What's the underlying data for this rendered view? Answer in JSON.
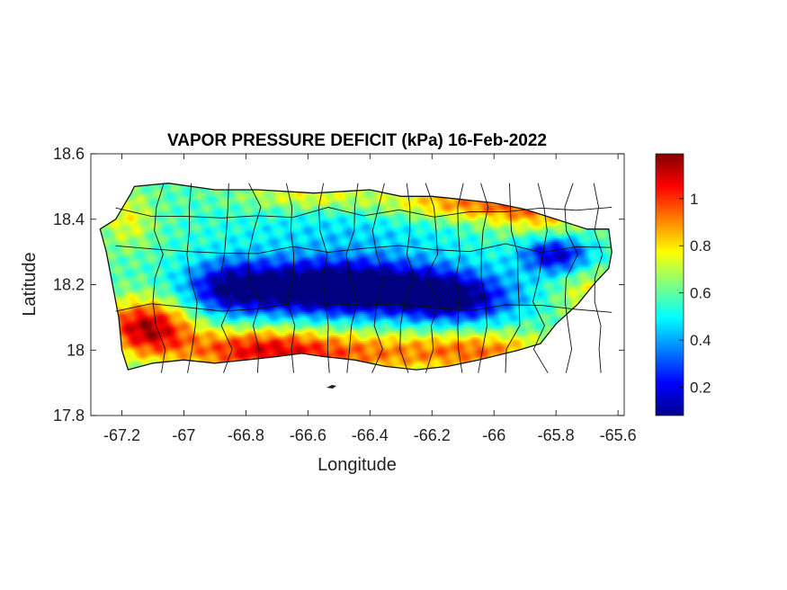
{
  "figure": {
    "title": "VAPOR PRESSURE DEFICIT (kPa) 16-Feb-2022",
    "xlabel": "Longitude",
    "ylabel": "Latitude"
  },
  "map": {
    "region": "Puerto Rico",
    "variable": "vapor pressure deficit",
    "units": "kPa",
    "date": "16-Feb-2022",
    "xlim": [
      -67.3,
      -65.58
    ],
    "ylim": [
      17.8,
      18.6
    ],
    "x_ticks": [
      "-67.2",
      "-67",
      "-66.8",
      "-66.6",
      "-66.4",
      "-66.2",
      "-66",
      "-65.8",
      "-65.6"
    ],
    "x_tick_values": [
      -67.2,
      -67.0,
      -66.8,
      -66.6,
      -66.4,
      -66.2,
      -66.0,
      -65.8,
      -65.6
    ],
    "y_ticks": [
      "17.8",
      "18",
      "18.2",
      "18.4",
      "18.6"
    ],
    "y_tick_values": [
      17.8,
      18.0,
      18.2,
      18.4,
      18.6
    ],
    "colormap": "jet",
    "colorbar": {
      "range": [
        0.08,
        1.19
      ],
      "ticks": [
        "0.2",
        "0.4",
        "0.6",
        "0.8",
        "1"
      ],
      "tick_values": [
        0.2,
        0.4,
        0.6,
        0.8,
        1.0
      ]
    },
    "coast": [
      [
        -67.27,
        18.37
      ],
      [
        -67.22,
        18.4
      ],
      [
        -67.17,
        18.48
      ],
      [
        -67.16,
        18.5
      ],
      [
        -67.05,
        18.51
      ],
      [
        -66.9,
        18.49
      ],
      [
        -66.76,
        18.49
      ],
      [
        -66.58,
        18.48
      ],
      [
        -66.4,
        18.49
      ],
      [
        -66.3,
        18.47
      ],
      [
        -66.2,
        18.47
      ],
      [
        -66.1,
        18.46
      ],
      [
        -66.0,
        18.45
      ],
      [
        -65.9,
        18.43
      ],
      [
        -65.8,
        18.4
      ],
      [
        -65.7,
        18.37
      ],
      [
        -65.63,
        18.37
      ],
      [
        -65.62,
        18.3
      ],
      [
        -65.63,
        18.25
      ],
      [
        -65.67,
        18.21
      ],
      [
        -65.73,
        18.14
      ],
      [
        -65.8,
        18.08
      ],
      [
        -65.85,
        18.02
      ],
      [
        -65.92,
        18.0
      ],
      [
        -66.05,
        17.97
      ],
      [
        -66.15,
        17.95
      ],
      [
        -66.25,
        17.94
      ],
      [
        -66.35,
        17.95
      ],
      [
        -66.45,
        17.97
      ],
      [
        -66.55,
        17.98
      ],
      [
        -66.62,
        17.99
      ],
      [
        -66.7,
        17.98
      ],
      [
        -66.8,
        17.97
      ],
      [
        -66.9,
        17.96
      ],
      [
        -67.0,
        17.97
      ],
      [
        -67.1,
        17.96
      ],
      [
        -67.18,
        17.94
      ],
      [
        -67.2,
        18.0
      ],
      [
        -67.21,
        18.1
      ],
      [
        -67.23,
        18.2
      ],
      [
        -67.25,
        18.3
      ],
      [
        -67.27,
        18.37
      ]
    ],
    "vpd_field": {
      "base_kpa": 0.58,
      "anomalies": [
        {
          "lon": -66.62,
          "lat": 18.19,
          "dlon": 0.2,
          "dlat": 0.06,
          "d_kpa": -0.45
        },
        {
          "lon": -66.33,
          "lat": 18.19,
          "dlon": 0.22,
          "dlat": 0.06,
          "d_kpa": -0.42
        },
        {
          "lon": -66.12,
          "lat": 18.15,
          "dlon": 0.13,
          "dlat": 0.05,
          "d_kpa": -0.35
        },
        {
          "lon": -66.86,
          "lat": 18.19,
          "dlon": 0.1,
          "dlat": 0.06,
          "d_kpa": -0.3
        },
        {
          "lon": -65.8,
          "lat": 18.29,
          "dlon": 0.08,
          "dlat": 0.04,
          "d_kpa": -0.42
        },
        {
          "lon": -66.45,
          "lat": 18.36,
          "dlon": 0.3,
          "dlat": 0.06,
          "d_kpa": -0.12
        },
        {
          "lon": -67.12,
          "lat": 18.07,
          "dlon": 0.1,
          "dlat": 0.06,
          "d_kpa": 0.55
        },
        {
          "lon": -66.78,
          "lat": 18.0,
          "dlon": 0.18,
          "dlat": 0.05,
          "d_kpa": 0.4
        },
        {
          "lon": -66.4,
          "lat": 17.99,
          "dlon": 0.25,
          "dlat": 0.05,
          "d_kpa": 0.3
        },
        {
          "lon": -66.02,
          "lat": 18.0,
          "dlon": 0.15,
          "dlat": 0.04,
          "d_kpa": 0.25
        },
        {
          "lon": -66.1,
          "lat": 18.45,
          "dlon": 0.18,
          "dlat": 0.04,
          "d_kpa": 0.32
        },
        {
          "lon": -65.85,
          "lat": 18.42,
          "dlon": 0.12,
          "dlat": 0.05,
          "d_kpa": 0.25
        },
        {
          "lon": -66.6,
          "lat": 18.47,
          "dlon": 0.15,
          "dlat": 0.03,
          "d_kpa": 0.18
        },
        {
          "lon": -65.68,
          "lat": 18.17,
          "dlon": 0.08,
          "dlat": 0.06,
          "d_kpa": 0.2
        },
        {
          "lon": -67.18,
          "lat": 18.4,
          "dlon": 0.06,
          "dlat": 0.06,
          "d_kpa": 0.18
        }
      ]
    },
    "municipal_divides_lon": [
      -67.08,
      -66.98,
      -66.86,
      -66.77,
      -66.66,
      -66.55,
      -66.46,
      -66.37,
      -66.28,
      -66.2,
      -66.12,
      -66.03,
      -65.94,
      -65.85,
      -65.75,
      -65.67
    ]
  }
}
